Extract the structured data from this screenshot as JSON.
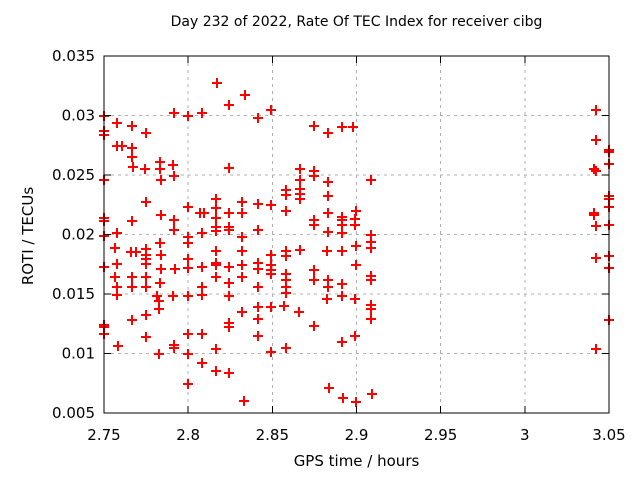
{
  "chart_data": {
    "type": "scatter",
    "title": "Day 232 of 2022, Rate Of TEC Index for receiver cibg",
    "xlabel": "GPS time / hours",
    "ylabel": "ROTI / TECUs",
    "xlim": [
      2.75,
      3.05
    ],
    "ylim": [
      0.005,
      0.035
    ],
    "xticks": {
      "values": [
        2.75,
        2.8,
        2.85,
        2.9,
        2.95,
        3.0,
        3.05
      ],
      "labels": [
        "2.75",
        "2.8",
        "2.85",
        "2.9",
        "2.95",
        "3",
        "3.05"
      ]
    },
    "yticks": {
      "values": [
        0.005,
        0.01,
        0.015,
        0.02,
        0.025,
        0.03,
        0.035
      ],
      "labels": [
        "0.005",
        "0.01",
        "0.015",
        "0.02",
        "0.025",
        "0.03",
        "0.035"
      ]
    },
    "grid": true,
    "legend": "none",
    "colors": {
      "marker": "#ff0000",
      "grid": "#b0b0b0",
      "axis": "#000000",
      "background": "#ffffff"
    },
    "marker": "plus",
    "series": [
      {
        "name": "ROTI",
        "points": [
          [
            2.75,
            0.03
          ],
          [
            2.75,
            0.0287
          ],
          [
            2.75,
            0.0284
          ],
          [
            2.75,
            0.0246
          ],
          [
            2.75,
            0.0214
          ],
          [
            2.75,
            0.0211
          ],
          [
            2.75,
            0.0199
          ],
          [
            2.75,
            0.0173
          ],
          [
            2.75,
            0.0124
          ],
          [
            2.75,
            0.0122
          ],
          [
            2.75,
            0.0116
          ],
          [
            2.7567,
            0.0189
          ],
          [
            2.7567,
            0.0164
          ],
          [
            2.7575,
            0.0149
          ],
          [
            2.7577,
            0.0274
          ],
          [
            2.7579,
            0.0294
          ],
          [
            2.7579,
            0.0201
          ],
          [
            2.7579,
            0.0175
          ],
          [
            2.7579,
            0.0156
          ],
          [
            2.7585,
            0.0106
          ],
          [
            2.7605,
            0.0274
          ],
          [
            2.766,
            0.0185
          ],
          [
            2.7668,
            0.0291
          ],
          [
            2.7668,
            0.0273
          ],
          [
            2.7668,
            0.0265
          ],
          [
            2.7668,
            0.0211
          ],
          [
            2.7668,
            0.0164
          ],
          [
            2.7668,
            0.0156
          ],
          [
            2.7668,
            0.0128
          ],
          [
            2.7672,
            0.0257
          ],
          [
            2.769,
            0.0185
          ],
          [
            2.7745,
            0.0255
          ],
          [
            2.7748,
            0.0285
          ],
          [
            2.7748,
            0.0227
          ],
          [
            2.7748,
            0.0188
          ],
          [
            2.7748,
            0.0183
          ],
          [
            2.7748,
            0.0179
          ],
          [
            2.7748,
            0.0175
          ],
          [
            2.7748,
            0.0164
          ],
          [
            2.7748,
            0.0156
          ],
          [
            2.7748,
            0.0132
          ],
          [
            2.7748,
            0.0114
          ],
          [
            2.7813,
            0.0148
          ],
          [
            2.7829,
            0.0144
          ],
          [
            2.7829,
            0.0137
          ],
          [
            2.7829,
            0.01
          ],
          [
            2.7831,
            0.0261
          ],
          [
            2.7833,
            0.0193
          ],
          [
            2.7833,
            0.0159
          ],
          [
            2.7834,
            0.0255
          ],
          [
            2.7839,
            0.0246
          ],
          [
            2.7839,
            0.0216
          ],
          [
            2.7839,
            0.0183
          ],
          [
            2.7839,
            0.0171
          ],
          [
            2.7908,
            0.0258
          ],
          [
            2.7912,
            0.0148
          ],
          [
            2.7916,
            0.0302
          ],
          [
            2.7916,
            0.0249
          ],
          [
            2.7916,
            0.0212
          ],
          [
            2.7916,
            0.0204
          ],
          [
            2.7916,
            0.0107
          ],
          [
            2.7916,
            0.0105
          ],
          [
            2.7922,
            0.0171
          ],
          [
            2.8,
            0.03
          ],
          [
            2.8,
            0.0223
          ],
          [
            2.8,
            0.0198
          ],
          [
            2.8,
            0.0193
          ],
          [
            2.8,
            0.0179
          ],
          [
            2.8,
            0.0172
          ],
          [
            2.8,
            0.0148
          ],
          [
            2.8,
            0.0116
          ],
          [
            2.8,
            0.01
          ],
          [
            2.8,
            0.0074
          ],
          [
            2.807,
            0.0218
          ],
          [
            2.808,
            0.0302
          ],
          [
            2.808,
            0.0201
          ],
          [
            2.808,
            0.0173
          ],
          [
            2.808,
            0.0156
          ],
          [
            2.808,
            0.0149
          ],
          [
            2.808,
            0.0116
          ],
          [
            2.808,
            0.0092
          ],
          [
            2.8095,
            0.0218
          ],
          [
            2.8163,
            0.023
          ],
          [
            2.8163,
            0.0222
          ],
          [
            2.8163,
            0.0214
          ],
          [
            2.8163,
            0.0206
          ],
          [
            2.8163,
            0.0203
          ],
          [
            2.8163,
            0.0186
          ],
          [
            2.8163,
            0.0176
          ],
          [
            2.8163,
            0.0174
          ],
          [
            2.8163,
            0.0164
          ],
          [
            2.8163,
            0.0104
          ],
          [
            2.8163,
            0.0085
          ],
          [
            2.817,
            0.0327
          ],
          [
            2.8245,
            0.0309
          ],
          [
            2.8245,
            0.0256
          ],
          [
            2.8245,
            0.0218
          ],
          [
            2.8245,
            0.0206
          ],
          [
            2.8245,
            0.0204
          ],
          [
            2.8245,
            0.0173
          ],
          [
            2.8245,
            0.0159
          ],
          [
            2.8245,
            0.0148
          ],
          [
            2.8245,
            0.0126
          ],
          [
            2.8245,
            0.0122
          ],
          [
            2.8245,
            0.0084
          ],
          [
            2.8321,
            0.0227
          ],
          [
            2.8321,
            0.0218
          ],
          [
            2.8321,
            0.0198
          ],
          [
            2.8321,
            0.0186
          ],
          [
            2.8321,
            0.0174
          ],
          [
            2.8321,
            0.0164
          ],
          [
            2.8321,
            0.0135
          ],
          [
            2.833,
            0.006
          ],
          [
            2.8336,
            0.0317
          ],
          [
            2.8413,
            0.0298
          ],
          [
            2.8413,
            0.0226
          ],
          [
            2.8413,
            0.0204
          ],
          [
            2.8413,
            0.0176
          ],
          [
            2.8413,
            0.0171
          ],
          [
            2.8413,
            0.0156
          ],
          [
            2.8413,
            0.0139
          ],
          [
            2.8413,
            0.0129
          ],
          [
            2.8413,
            0.0115
          ],
          [
            2.8492,
            0.0305
          ],
          [
            2.8492,
            0.0225
          ],
          [
            2.8492,
            0.0183
          ],
          [
            2.8492,
            0.0174
          ],
          [
            2.8492,
            0.017
          ],
          [
            2.8492,
            0.0167
          ],
          [
            2.8492,
            0.0139
          ],
          [
            2.8492,
            0.0101
          ],
          [
            2.858,
            0.0237
          ],
          [
            2.858,
            0.0233
          ],
          [
            2.858,
            0.022
          ],
          [
            2.858,
            0.0186
          ],
          [
            2.858,
            0.0182
          ],
          [
            2.858,
            0.0167
          ],
          [
            2.858,
            0.0162
          ],
          [
            2.858,
            0.0156
          ],
          [
            2.858,
            0.0151
          ],
          [
            2.8572,
            0.014
          ],
          [
            2.858,
            0.0105
          ],
          [
            2.8661,
            0.0135
          ],
          [
            2.8665,
            0.0255
          ],
          [
            2.8665,
            0.0246
          ],
          [
            2.8665,
            0.0238
          ],
          [
            2.8665,
            0.0234
          ],
          [
            2.8665,
            0.023
          ],
          [
            2.8665,
            0.0187
          ],
          [
            2.875,
            0.0291
          ],
          [
            2.875,
            0.0253
          ],
          [
            2.875,
            0.0249
          ],
          [
            2.875,
            0.0212
          ],
          [
            2.875,
            0.0208
          ],
          [
            2.875,
            0.017
          ],
          [
            2.875,
            0.0162
          ],
          [
            2.875,
            0.0123
          ],
          [
            2.8833,
            0.0285
          ],
          [
            2.8833,
            0.0244
          ],
          [
            2.8833,
            0.0232
          ],
          [
            2.8833,
            0.0218
          ],
          [
            2.8833,
            0.0202
          ],
          [
            2.8827,
            0.0186
          ],
          [
            2.8833,
            0.0162
          ],
          [
            2.8833,
            0.0156
          ],
          [
            2.8827,
            0.0146
          ],
          [
            2.8837,
            0.0071
          ],
          [
            2.8915,
            0.029
          ],
          [
            2.8912,
            0.0215
          ],
          [
            2.8912,
            0.0212
          ],
          [
            2.8912,
            0.0208
          ],
          [
            2.8912,
            0.0201
          ],
          [
            2.8912,
            0.0186
          ],
          [
            2.8912,
            0.0158
          ],
          [
            2.8912,
            0.0148
          ],
          [
            2.8912,
            0.011
          ],
          [
            2.8918,
            0.0063
          ],
          [
            2.8977,
            0.029
          ],
          [
            2.8995,
            0.022
          ],
          [
            2.899,
            0.0213
          ],
          [
            2.899,
            0.0208
          ],
          [
            2.8995,
            0.019
          ],
          [
            2.8995,
            0.0174
          ],
          [
            2.899,
            0.0146
          ],
          [
            2.899,
            0.0115
          ],
          [
            2.8999,
            0.0059
          ],
          [
            2.9086,
            0.0246
          ],
          [
            2.9086,
            0.02
          ],
          [
            2.9086,
            0.0194
          ],
          [
            2.9086,
            0.0189
          ],
          [
            2.9086,
            0.0165
          ],
          [
            2.9086,
            0.0162
          ],
          [
            2.9086,
            0.0141
          ],
          [
            2.9086,
            0.0137
          ],
          [
            2.9086,
            0.0129
          ],
          [
            2.909,
            0.0066
          ],
          [
            3.0413,
            0.0255
          ],
          [
            3.0413,
            0.0218
          ],
          [
            3.0413,
            0.0216
          ],
          [
            3.0421,
            0.0305
          ],
          [
            3.0421,
            0.0279
          ],
          [
            3.0421,
            0.0253
          ],
          [
            3.0421,
            0.0207
          ],
          [
            3.0421,
            0.018
          ],
          [
            3.0421,
            0.0104
          ],
          [
            3.05,
            0.0271
          ],
          [
            3.05,
            0.0269
          ],
          [
            3.05,
            0.0259
          ],
          [
            3.05,
            0.0232
          ],
          [
            3.05,
            0.023
          ],
          [
            3.05,
            0.0223
          ],
          [
            3.05,
            0.0208
          ],
          [
            3.05,
            0.0182
          ],
          [
            3.05,
            0.0172
          ],
          [
            3.05,
            0.0128
          ]
        ]
      }
    ]
  }
}
